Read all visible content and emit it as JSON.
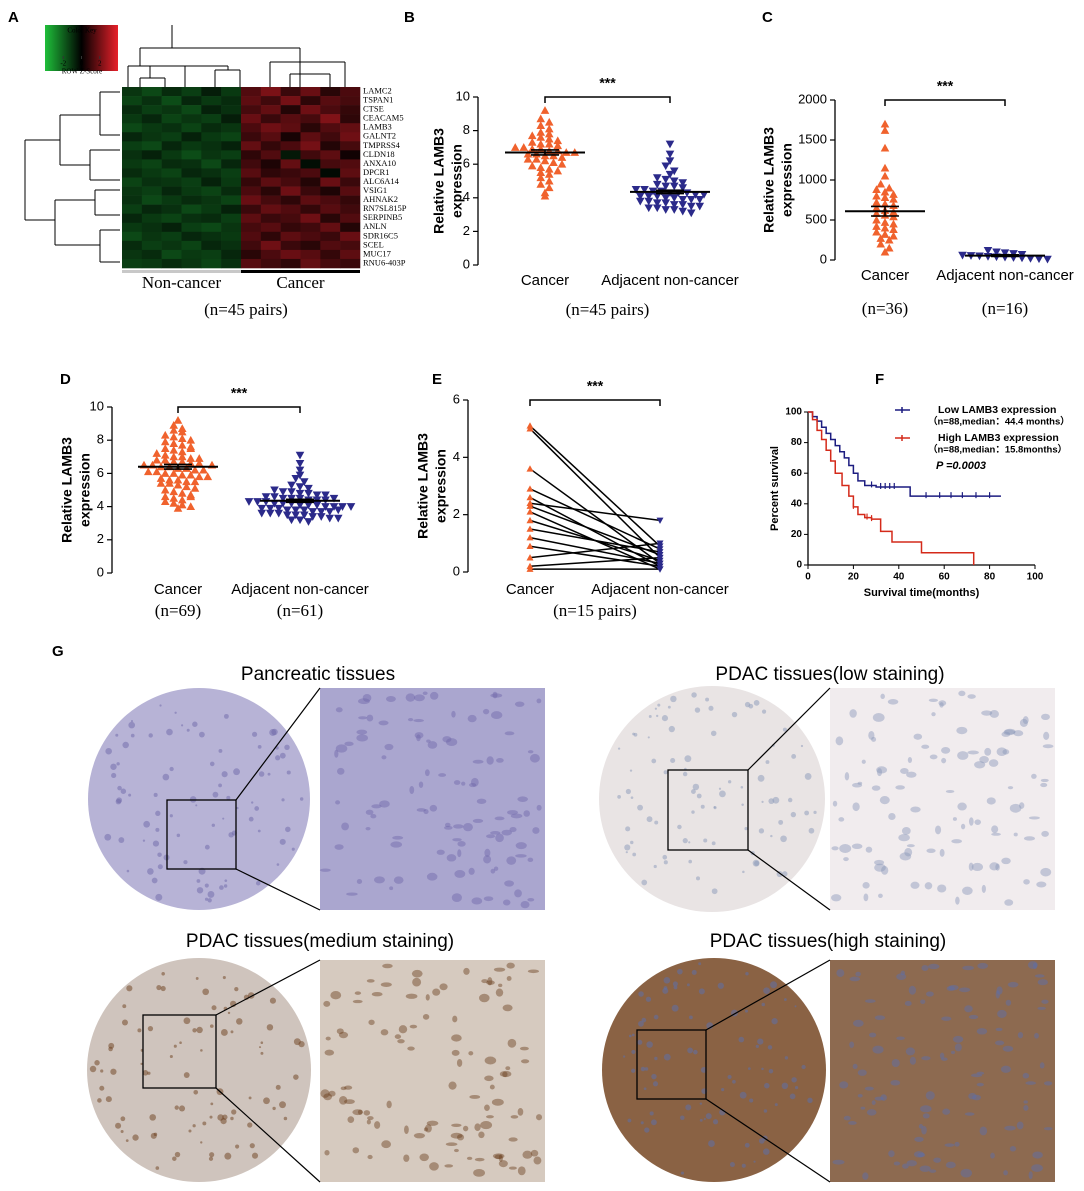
{
  "chart_data": [
    {
      "type": "heatmap",
      "label": "A",
      "key_title": "Color Key",
      "key_label": "ROW Z-Score",
      "zlim": [
        -4,
        4
      ],
      "zticks": [
        -2,
        0,
        2
      ],
      "colors": [
        "#1fbf3a",
        "#000000",
        "#e8202a"
      ],
      "rows": [
        "LAMC2",
        "TSPAN1",
        "CTSE",
        "CEACAM5",
        "LAMB3",
        "GALNT2",
        "TMPRSS4",
        "CLDN18",
        "ANXA10",
        "DPCR1",
        "ALC6A14",
        "VSIG1",
        "AHNAK2",
        "RN7SL815P",
        "SERPINB5",
        "ANLN",
        "SDR16C5",
        "SCEL",
        "MUC17",
        "RNU6-403P"
      ],
      "highlight": 4,
      "highlight_color": "#e8202a",
      "groups": [
        {
          "name": "Non-cancer",
          "color": "#c8c8c8",
          "columns": 6
        },
        {
          "name": "Cancer",
          "color": "#000000",
          "columns": 6
        }
      ],
      "note": "(n=45 pairs)",
      "values": [
        [
          -1.1,
          -1.5,
          -0.9,
          -1.3,
          -0.6,
          -1.2,
          1.4,
          2.1,
          1.0,
          1.8,
          0.7,
          1.3
        ],
        [
          -1.4,
          -1.0,
          -1.6,
          -0.8,
          -1.2,
          -0.9,
          1.6,
          1.1,
          2.0,
          0.8,
          1.5,
          1.2
        ],
        [
          -0.9,
          -1.3,
          -1.1,
          -1.5,
          -0.7,
          -1.0,
          1.2,
          1.7,
          0.6,
          1.9,
          1.3,
          0.9
        ],
        [
          -1.2,
          -0.8,
          -1.4,
          -1.1,
          -1.3,
          -0.6,
          1.8,
          1.0,
          1.5,
          1.2,
          2.2,
          0.8
        ],
        [
          -1.5,
          -1.2,
          -1.0,
          -1.4,
          -0.9,
          -1.1,
          1.3,
          1.9,
          1.6,
          0.7,
          1.4,
          1.7
        ],
        [
          -0.8,
          -1.1,
          -1.3,
          -0.7,
          -1.2,
          -1.4,
          1.0,
          1.5,
          0.4,
          1.6,
          1.1,
          1.9
        ],
        [
          -1.3,
          -1.5,
          -0.8,
          -1.2,
          -1.0,
          -0.7,
          1.7,
          0.9,
          1.3,
          2.0,
          0.6,
          1.2
        ],
        [
          -1.0,
          -0.7,
          -1.2,
          -1.6,
          -1.1,
          -1.3,
          0.8,
          1.4,
          -0.5,
          1.1,
          1.6,
          0.3
        ],
        [
          -1.2,
          -1.4,
          -0.9,
          -1.0,
          -1.5,
          -0.8,
          1.1,
          0.5,
          1.7,
          -0.3,
          1.2,
          1.4
        ],
        [
          -0.9,
          -1.2,
          -1.4,
          -0.8,
          -1.0,
          -1.3,
          1.5,
          0.8,
          1.0,
          1.3,
          -0.2,
          1.6
        ],
        [
          -1.4,
          -1.0,
          -1.1,
          -1.3,
          -0.7,
          -1.2,
          0.9,
          1.6,
          1.2,
          0.6,
          1.8,
          1.0
        ],
        [
          -1.1,
          -1.3,
          -0.8,
          -1.2,
          -1.4,
          -0.9,
          1.3,
          0.7,
          1.9,
          1.0,
          0.5,
          1.5
        ],
        [
          -1.0,
          -1.5,
          -1.2,
          -0.9,
          -1.1,
          -1.4,
          1.8,
          1.2,
          0.8,
          1.6,
          1.3,
          0.9
        ],
        [
          -1.3,
          -0.8,
          -1.0,
          -1.5,
          -1.2,
          -0.7,
          1.0,
          1.7,
          1.4,
          0.9,
          1.5,
          1.1
        ],
        [
          -0.8,
          -1.2,
          -1.4,
          -1.0,
          -0.9,
          -1.3,
          1.6,
          1.0,
          1.2,
          1.9,
          0.7,
          1.4
        ],
        [
          -1.2,
          -1.0,
          -0.7,
          -1.3,
          -1.5,
          -1.1,
          1.2,
          1.5,
          0.9,
          1.1,
          1.7,
          0.6
        ],
        [
          -1.5,
          -1.1,
          -1.3,
          -0.8,
          -1.0,
          -1.2,
          1.4,
          0.8,
          1.6,
          1.3,
          1.0,
          1.8
        ],
        [
          -0.9,
          -1.3,
          -1.1,
          -1.4,
          -0.8,
          -1.0,
          1.1,
          1.9,
          1.0,
          0.7,
          1.4,
          1.2
        ],
        [
          -1.1,
          -0.9,
          -1.5,
          -1.2,
          -1.3,
          -0.8,
          0.7,
          1.3,
          1.8,
          1.5,
          0.9,
          1.6
        ],
        [
          -1.3,
          -1.2,
          -0.9,
          -1.1,
          -1.4,
          -1.0,
          1.5,
          1.1,
          0.8,
          1.7,
          1.2,
          1.0
        ]
      ]
    },
    {
      "type": "dot",
      "label": "B",
      "ylabel": [
        "Relative LAMB3",
        "expression"
      ],
      "categories": [
        "Cancer",
        "Adjacent non-cancer"
      ],
      "colors": [
        "#f0622d",
        "#2b2a8a"
      ],
      "values": [
        [
          9.2,
          8.7,
          8.5,
          8.3,
          8.1,
          7.9,
          7.8,
          7.7,
          7.6,
          7.5,
          7.4,
          7.3,
          7.2,
          7.2,
          7.1,
          7.0,
          7.0,
          6.9,
          6.9,
          6.8,
          6.8,
          6.7,
          6.7,
          6.6,
          6.6,
          6.5,
          6.5,
          6.4,
          6.3,
          6.3,
          6.2,
          6.1,
          6.0,
          5.9,
          5.8,
          5.7,
          5.6,
          5.5,
          5.4,
          5.2,
          5.0,
          4.8,
          4.6,
          4.3,
          4.1
        ],
        [
          7.2,
          6.6,
          6.2,
          5.9,
          5.6,
          5.4,
          5.2,
          5.1,
          5.0,
          4.9,
          4.8,
          4.7,
          4.7,
          4.6,
          4.5,
          4.5,
          4.4,
          4.4,
          4.3,
          4.3,
          4.3,
          4.2,
          4.2,
          4.1,
          4.1,
          4.1,
          4.0,
          4.0,
          3.9,
          3.9,
          3.9,
          3.8,
          3.8,
          3.7,
          3.7,
          3.6,
          3.6,
          3.5,
          3.5,
          3.4,
          3.4,
          3.3,
          3.3,
          3.2,
          3.1
        ]
      ],
      "means": [
        6.7,
        4.35
      ],
      "sems": [
        0.15,
        0.1
      ],
      "ylim": [
        0,
        10
      ],
      "yticks": [
        0,
        2,
        4,
        6,
        8,
        10
      ],
      "annotation": "***",
      "note": "(n=45 pairs)"
    },
    {
      "type": "dot",
      "label": "C",
      "ylabel": [
        "Relative LAMB3",
        "expression"
      ],
      "categories": [
        "Cancer",
        "Adjacent non-cancer"
      ],
      "colors": [
        "#f0622d",
        "#2b2a8a"
      ],
      "values": [
        [
          1700,
          1620,
          1400,
          1150,
          1050,
          950,
          900,
          880,
          850,
          820,
          800,
          780,
          760,
          720,
          700,
          680,
          650,
          620,
          600,
          580,
          560,
          540,
          500,
          470,
          450,
          420,
          400,
          380,
          350,
          320,
          300,
          270,
          250,
          200,
          150,
          100
        ],
        [
          120,
          100,
          90,
          80,
          70,
          60,
          55,
          50,
          45,
          40,
          35,
          30,
          25,
          20,
          15,
          10
        ]
      ],
      "means": [
        610,
        55
      ],
      "sems": [
        60,
        10
      ],
      "ylim": [
        0,
        2000
      ],
      "yticks": [
        0,
        500,
        1000,
        1500,
        2000
      ],
      "annotation": "***",
      "category_notes": [
        "(n=36)",
        "(n=16)"
      ]
    },
    {
      "type": "dot",
      "label": "D",
      "ylabel": [
        "Relative LAMB3",
        "expression"
      ],
      "categories": [
        "Cancer",
        "Adjacent non-cancer"
      ],
      "colors": [
        "#f0622d",
        "#2b2a8a"
      ],
      "values": [
        [
          9.2,
          8.9,
          8.7,
          8.6,
          8.5,
          8.3,
          8.2,
          8.1,
          8.0,
          7.9,
          7.8,
          7.7,
          7.6,
          7.5,
          7.4,
          7.3,
          7.2,
          7.1,
          7.0,
          7.0,
          6.9,
          6.9,
          6.8,
          6.8,
          6.7,
          6.7,
          6.6,
          6.6,
          6.5,
          6.5,
          6.4,
          6.4,
          6.3,
          6.3,
          6.2,
          6.2,
          6.1,
          6.1,
          6.0,
          6.0,
          5.9,
          5.9,
          5.8,
          5.8,
          5.7,
          5.6,
          5.6,
          5.5,
          5.4,
          5.4,
          5.3,
          5.2,
          5.1,
          5.0,
          4.9,
          4.8,
          4.7,
          4.6,
          4.5,
          4.4,
          4.3,
          4.2,
          4.1,
          4.0,
          3.9,
          7.5,
          6.5,
          5.5,
          4.6
        ],
        [
          7.1,
          6.6,
          6.2,
          5.9,
          5.7,
          5.5,
          5.3,
          5.2,
          5.1,
          5.0,
          4.9,
          4.9,
          4.8,
          4.8,
          4.7,
          4.7,
          4.6,
          4.6,
          4.5,
          4.5,
          4.5,
          4.4,
          4.4,
          4.4,
          4.3,
          4.3,
          4.3,
          4.2,
          4.2,
          4.2,
          4.1,
          4.1,
          4.1,
          4.0,
          4.0,
          4.0,
          3.9,
          3.9,
          3.9,
          3.8,
          3.8,
          3.8,
          3.7,
          3.7,
          3.7,
          3.6,
          3.6,
          3.6,
          3.5,
          3.5,
          3.5,
          3.4,
          3.4,
          3.3,
          3.3,
          3.2,
          3.2,
          3.1,
          4.5,
          4.0,
          3.8
        ]
      ],
      "means": [
        6.4,
        4.35
      ],
      "sems": [
        0.14,
        0.09
      ],
      "ylim": [
        0,
        10
      ],
      "yticks": [
        0,
        2,
        4,
        6,
        8,
        10
      ],
      "annotation": "***",
      "category_notes": [
        "(n=69)",
        "(n=61)"
      ]
    },
    {
      "type": "paired",
      "label": "E",
      "ylabel": [
        "Relative LAMB3",
        "expression"
      ],
      "categories": [
        "Cancer",
        "Adjacent non-cancer"
      ],
      "colors": [
        "#f0622d",
        "#2b2a8a"
      ],
      "line_color": "#000000",
      "values": [
        [
          5.1,
          5.0,
          3.6,
          2.9,
          2.6,
          2.4,
          2.3,
          2.1,
          1.8,
          1.5,
          1.2,
          0.9,
          0.5,
          0.2,
          0.1
        ],
        [
          0.9,
          0.5,
          0.3,
          0.8,
          0.2,
          1.8,
          0.6,
          0.1,
          0.4,
          0.7,
          0.3,
          0.2,
          1.0,
          0.5,
          0.1
        ]
      ],
      "ylim": [
        0,
        6
      ],
      "yticks": [
        0,
        2,
        4,
        6
      ],
      "annotation": "***",
      "note": "(n=15 pairs)"
    },
    {
      "type": "survival",
      "label": "F",
      "xlabel": "Survival time(months)",
      "ylabel": "Percent survival",
      "xlim": [
        0,
        100
      ],
      "ylim": [
        0,
        100
      ],
      "xticks": [
        0,
        20,
        40,
        60,
        80,
        100
      ],
      "yticks": [
        0,
        20,
        40,
        60,
        80,
        100
      ],
      "series": [
        {
          "name": "Low LAMB3 expression",
          "note": "（n=88,median：44.4 months）",
          "color": "#1c1c80",
          "x": [
            0,
            2,
            4,
            6,
            8,
            10,
            12,
            14,
            16,
            18,
            20,
            22,
            25,
            30,
            35,
            45,
            85
          ],
          "y": [
            100,
            97,
            94,
            90,
            86,
            82,
            78,
            74,
            70,
            65,
            60,
            55,
            52,
            51,
            51,
            45,
            45
          ],
          "censored": [
            28,
            32,
            34,
            36,
            38,
            52,
            58,
            63,
            68,
            74,
            80
          ]
        },
        {
          "name": "High LAMB3 expression",
          "note": "（n=88,median：15.8months）",
          "color": "#d42a1a",
          "x": [
            0,
            2,
            4,
            6,
            8,
            10,
            12,
            15,
            18,
            20,
            22,
            25,
            28,
            32,
            37,
            50,
            60,
            73
          ],
          "y": [
            100,
            95,
            88,
            82,
            75,
            68,
            60,
            52,
            45,
            38,
            33,
            31,
            30,
            22,
            15,
            8,
            8,
            0
          ],
          "censored": [
            20,
            26,
            28
          ]
        }
      ],
      "annotation": "P =0.0003"
    }
  ],
  "figure": {
    "label": "G",
    "titles": [
      "Pancreatic tissues",
      "PDAC tissues(low staining)",
      "PDAC tissues(medium staining)",
      "PDAC tissues(high staining)"
    ]
  }
}
